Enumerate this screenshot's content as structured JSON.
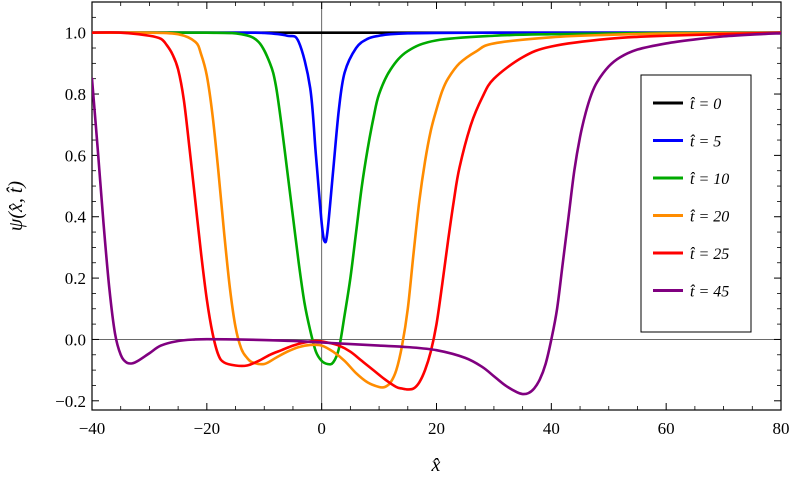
{
  "chart_data": {
    "type": "line",
    "xlabel": "x̂",
    "ylabel": "ψ(x̂, t̂)",
    "xlim": [
      -40,
      80
    ],
    "ylim": [
      -0.23,
      1.1
    ],
    "x_ticks": [
      -40,
      -20,
      0,
      20,
      40,
      60,
      80
    ],
    "x_tick_labels": [
      "−40",
      "−20",
      "0",
      "20",
      "40",
      "60",
      "80"
    ],
    "y_ticks": [
      -0.2,
      0.0,
      0.2,
      0.4,
      0.6,
      0.8,
      1.0
    ],
    "y_tick_labels": [
      "−0.2",
      "0.0",
      "0.2",
      "0.4",
      "0.6",
      "0.8",
      "1.0"
    ],
    "grid": false,
    "legend_position": "right",
    "series": [
      {
        "name": "t̂ = 0",
        "color": "#000000",
        "x": [
          -40,
          80
        ],
        "y": [
          1.0,
          1.0
        ]
      },
      {
        "name": "t̂ = 5",
        "color": "#0000ff",
        "x": [
          -40,
          -15,
          -10,
          -6,
          -4,
          -2,
          -1,
          0,
          0.5,
          1,
          2,
          3,
          4,
          6,
          8,
          10,
          12,
          15,
          20,
          30,
          40,
          60,
          80
        ],
        "y": [
          1.0,
          1.0,
          0.999,
          0.99,
          0.97,
          0.82,
          0.6,
          0.38,
          0.32,
          0.35,
          0.55,
          0.75,
          0.87,
          0.95,
          0.98,
          0.99,
          0.995,
          0.998,
          0.999,
          1.0,
          1.0,
          1.0,
          1.0
        ]
      },
      {
        "name": "t̂ = 10",
        "color": "#00aa00",
        "x": [
          -40,
          -20,
          -14,
          -11,
          -9,
          -8,
          -7,
          -6,
          -5,
          -4,
          -3,
          -2,
          -1,
          0,
          1,
          2,
          3,
          4,
          5,
          6,
          7,
          8,
          9,
          10,
          12,
          15,
          20,
          30,
          40,
          60,
          80
        ],
        "y": [
          1.0,
          1.0,
          0.995,
          0.97,
          0.9,
          0.83,
          0.7,
          0.55,
          0.4,
          0.25,
          0.12,
          0.03,
          -0.04,
          -0.07,
          -0.08,
          -0.075,
          -0.03,
          0.08,
          0.2,
          0.35,
          0.5,
          0.62,
          0.72,
          0.8,
          0.88,
          0.94,
          0.975,
          0.99,
          0.995,
          0.999,
          1.0
        ]
      },
      {
        "name": "t̂ = 20",
        "color": "#ff8c00",
        "x": [
          -40,
          -30,
          -25,
          -22,
          -21,
          -20,
          -19,
          -18,
          -17,
          -16,
          -15,
          -14,
          -13,
          -12,
          -10,
          -8,
          -6,
          -4,
          -2,
          0,
          2,
          4,
          6,
          8,
          10,
          11,
          12,
          13,
          14,
          15,
          16,
          17,
          18,
          19,
          20,
          21,
          22,
          24,
          27,
          30,
          40,
          50,
          60,
          80
        ],
        "y": [
          1.0,
          1.0,
          0.995,
          0.97,
          0.93,
          0.86,
          0.73,
          0.55,
          0.35,
          0.17,
          0.04,
          -0.03,
          -0.06,
          -0.075,
          -0.08,
          -0.06,
          -0.04,
          -0.025,
          -0.018,
          -0.02,
          -0.04,
          -0.07,
          -0.11,
          -0.14,
          -0.155,
          -0.155,
          -0.14,
          -0.1,
          -0.02,
          0.1,
          0.28,
          0.45,
          0.58,
          0.68,
          0.75,
          0.81,
          0.85,
          0.9,
          0.94,
          0.965,
          0.985,
          0.993,
          0.997,
          1.0
        ]
      },
      {
        "name": "t̂ = 25",
        "color": "#ff0000",
        "x": [
          -40,
          -35,
          -30,
          -28,
          -27,
          -26,
          -25,
          -24,
          -23,
          -22,
          -21,
          -20,
          -19,
          -18,
          -17,
          -15,
          -13,
          -11,
          -9,
          -7,
          -5,
          -3,
          -1,
          1,
          3,
          5,
          7,
          9,
          11,
          13,
          14,
          15,
          16,
          17,
          18,
          19,
          20,
          21,
          22,
          23,
          24,
          26,
          28,
          30,
          35,
          40,
          50,
          60,
          80
        ],
        "y": [
          1.0,
          1.0,
          0.99,
          0.98,
          0.96,
          0.93,
          0.88,
          0.78,
          0.62,
          0.45,
          0.28,
          0.13,
          0.02,
          -0.05,
          -0.075,
          -0.085,
          -0.085,
          -0.07,
          -0.05,
          -0.035,
          -0.02,
          -0.01,
          -0.005,
          -0.01,
          -0.02,
          -0.04,
          -0.07,
          -0.1,
          -0.13,
          -0.155,
          -0.16,
          -0.163,
          -0.16,
          -0.14,
          -0.1,
          -0.04,
          0.05,
          0.18,
          0.32,
          0.45,
          0.56,
          0.7,
          0.79,
          0.85,
          0.92,
          0.955,
          0.98,
          0.99,
          1.0
        ]
      },
      {
        "name": "t̂ = 45",
        "color": "#800080",
        "x": [
          -40,
          -39,
          -38,
          -37,
          -36,
          -35,
          -34,
          -33,
          -32,
          -30,
          -28,
          -25,
          -22,
          -20,
          -15,
          -10,
          -5,
          0,
          5,
          10,
          15,
          20,
          25,
          28,
          30,
          32,
          34,
          35,
          36,
          37,
          38,
          39,
          40,
          41,
          42,
          43,
          44,
          45,
          46,
          47,
          48,
          50,
          52,
          55,
          60,
          65,
          70,
          75,
          80
        ],
        "y": [
          0.85,
          0.62,
          0.38,
          0.17,
          0.02,
          -0.05,
          -0.075,
          -0.078,
          -0.07,
          -0.045,
          -0.02,
          -0.005,
          0.0,
          0.001,
          0.0,
          -0.002,
          -0.005,
          -0.01,
          -0.015,
          -0.02,
          -0.025,
          -0.035,
          -0.06,
          -0.09,
          -0.12,
          -0.15,
          -0.172,
          -0.178,
          -0.175,
          -0.16,
          -0.13,
          -0.08,
          0.0,
          0.1,
          0.25,
          0.4,
          0.55,
          0.66,
          0.74,
          0.8,
          0.84,
          0.89,
          0.92,
          0.945,
          0.965,
          0.978,
          0.988,
          0.994,
          0.998
        ]
      }
    ]
  }
}
